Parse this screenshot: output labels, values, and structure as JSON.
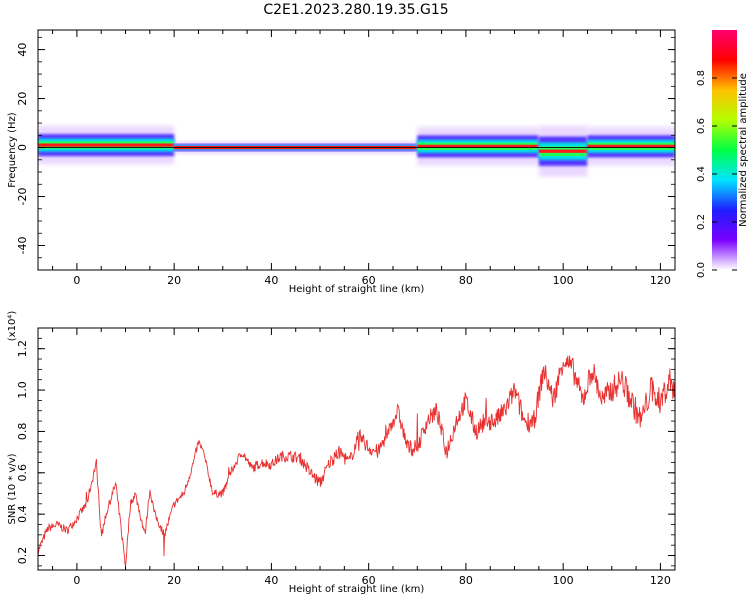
{
  "title": "C2E1.2023.280.19.35.G15",
  "chart_data": [
    {
      "type": "heatmap",
      "title": "",
      "xlabel": "Height of straight line (km)",
      "ylabel": "Frequency (Hz)",
      "xlim": [
        -8,
        123
      ],
      "ylim": [
        -50,
        48
      ],
      "xticks": [
        0,
        20,
        40,
        60,
        80,
        100,
        120
      ],
      "yticks": [
        -40,
        -20,
        0,
        20,
        40
      ],
      "colorbar": {
        "label": "Normalized spectral amplitude",
        "range": [
          0,
          1
        ],
        "ticks": [
          "0.0",
          "0.2",
          "0.4",
          "0.6",
          "0.8"
        ],
        "colormap": [
          "#ffffff",
          "#7a00ff",
          "#1e1eff",
          "#00e5ff",
          "#00ff44",
          "#b4ff00",
          "#ffc000",
          "#ff0000",
          "#ff0070"
        ]
      },
      "bands": [
        {
          "x_start": -8,
          "x_end": 20,
          "center_hz": 1.0,
          "width_hz": 3.0,
          "peak_amplitude": 0.9
        },
        {
          "x_start": 20,
          "x_end": 70,
          "center_hz": 0.0,
          "width_hz": 1.0,
          "peak_amplitude": 0.95
        },
        {
          "x_start": 70,
          "x_end": 95,
          "center_hz": 0.5,
          "width_hz": 3.0,
          "peak_amplitude": 0.85
        },
        {
          "x_start": 95,
          "x_end": 105,
          "center_hz": -1.5,
          "width_hz": 4.0,
          "peak_amplitude": 0.8
        },
        {
          "x_start": 105,
          "x_end": 123,
          "center_hz": 0.5,
          "width_hz": 3.0,
          "peak_amplitude": 0.85
        }
      ]
    },
    {
      "type": "line",
      "title": "",
      "xlabel": "Height of straight line (km)",
      "ylabel": "SNR (10 * v/v)",
      "yscale_label": "(x10⁴)",
      "xlim": [
        -8,
        123
      ],
      "ylim": [
        0.13,
        1.3
      ],
      "xticks": [
        0,
        20,
        40,
        60,
        80,
        100,
        120
      ],
      "yticks": [
        "0.2",
        "0.4",
        "0.6",
        "0.8",
        "1.0",
        "1.2"
      ],
      "color": "#e83030",
      "x": [
        -8,
        -6,
        -4,
        -2,
        0,
        2,
        3,
        4,
        5,
        6,
        8,
        9,
        10,
        11,
        12,
        14,
        15,
        16,
        18,
        20,
        22,
        24,
        25,
        26,
        28,
        30,
        32,
        34,
        36,
        38,
        40,
        42,
        44,
        46,
        48,
        50,
        52,
        54,
        56,
        58,
        60,
        62,
        64,
        66,
        68,
        70,
        72,
        74,
        76,
        78,
        80,
        82,
        84,
        86,
        88,
        90,
        92,
        94,
        96,
        98,
        100,
        102,
        104,
        106,
        108,
        110,
        112,
        114,
        116,
        118,
        120,
        122,
        123
      ],
      "values": [
        0.22,
        0.33,
        0.35,
        0.32,
        0.38,
        0.45,
        0.55,
        0.65,
        0.3,
        0.4,
        0.55,
        0.35,
        0.15,
        0.45,
        0.5,
        0.3,
        0.52,
        0.4,
        0.3,
        0.45,
        0.5,
        0.65,
        0.75,
        0.7,
        0.5,
        0.5,
        0.62,
        0.7,
        0.62,
        0.65,
        0.64,
        0.68,
        0.68,
        0.67,
        0.6,
        0.55,
        0.65,
        0.7,
        0.65,
        0.78,
        0.72,
        0.7,
        0.8,
        0.9,
        0.72,
        0.72,
        0.85,
        0.9,
        0.7,
        0.85,
        0.95,
        0.8,
        0.85,
        0.85,
        0.9,
        1.0,
        0.85,
        0.85,
        1.1,
        0.95,
        1.15,
        1.1,
        0.95,
        1.1,
        0.95,
        1.0,
        1.05,
        0.95,
        0.85,
        1.0,
        0.95,
        1.05,
        1.0
      ]
    }
  ]
}
